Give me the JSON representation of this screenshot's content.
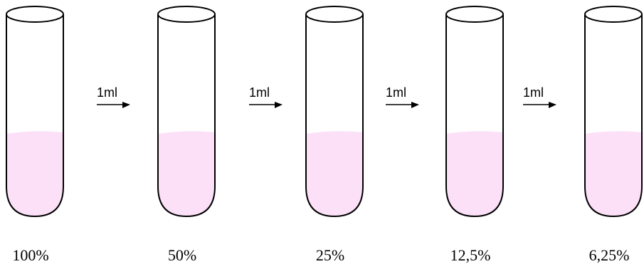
{
  "tubes": [
    {
      "label": "100%"
    },
    {
      "label": "50%"
    },
    {
      "label": "25%"
    },
    {
      "label": "12,5%"
    },
    {
      "label": "6,25%"
    }
  ],
  "transfers": [
    {
      "label": "1ml"
    },
    {
      "label": "1ml"
    },
    {
      "label": "1ml"
    },
    {
      "label": "1ml"
    }
  ]
}
